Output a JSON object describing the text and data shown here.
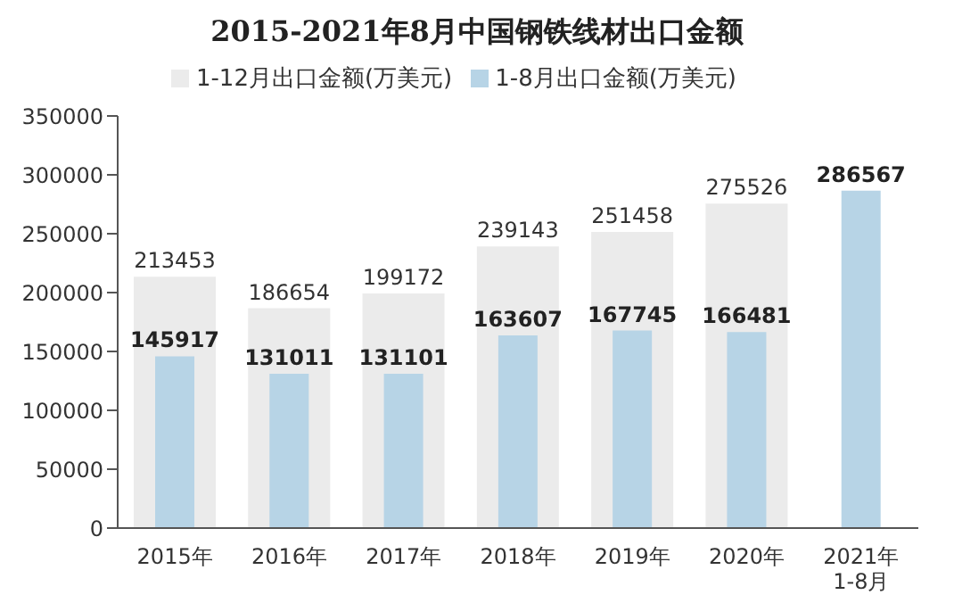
{
  "chart_data": {
    "type": "bar",
    "title": "2015-2021年8月中国钢铁线材出口金额",
    "categories": [
      "2015年",
      "2016年",
      "2017年",
      "2018年",
      "2019年",
      "2020年",
      "2021年\n1-8月"
    ],
    "series": [
      {
        "name": "1-12月出口金额(万美元)",
        "color": "#ebebeb",
        "values": [
          213453,
          186654,
          199172,
          239143,
          251458,
          275526,
          null
        ]
      },
      {
        "name": "1-8月出口金额(万美元)",
        "color": "#b7d4e6",
        "values": [
          145917,
          131011,
          131101,
          163607,
          167745,
          166481,
          286567
        ]
      }
    ],
    "ylim": [
      0,
      350000
    ],
    "yticks": [
      0,
      50000,
      100000,
      150000,
      200000,
      250000,
      300000,
      350000
    ],
    "data_labels": true,
    "legend": "top"
  }
}
